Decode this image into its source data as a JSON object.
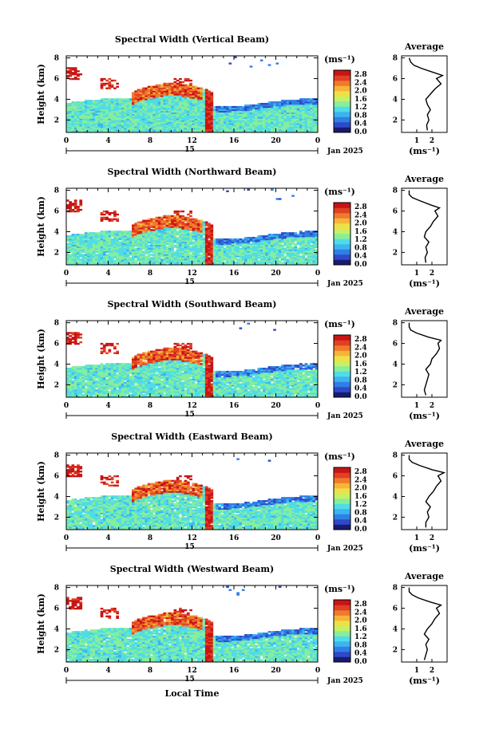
{
  "chart_data": [
    {
      "type": "heatmap",
      "title": "Spectral Width (Vertical Beam)",
      "ylabel": "Height (km)",
      "xlabel": "",
      "xticks": [
        "0",
        "4",
        "8",
        "12",
        "16",
        "20",
        "0"
      ],
      "ylim": [
        0.8,
        8.2
      ],
      "yticks": [
        "2",
        "4",
        "6",
        "8"
      ],
      "xlim_hours": [
        0,
        24
      ],
      "date_day": "15",
      "date_month_year": "Jan 2025",
      "colorbar": {
        "unit": "(ms⁻¹)",
        "ticks": [
          "2.8",
          "2.4",
          "2.0",
          "1.6",
          "1.2",
          "0.8",
          "0.4",
          "0.0"
        ],
        "range": [
          0.0,
          2.8
        ]
      },
      "profile": {
        "title": "Average",
        "xlabel": "(ms⁻¹)",
        "xticks": [
          "1",
          "2"
        ],
        "yticks": [
          "2",
          "4",
          "6",
          "8"
        ],
        "heights": [
          1.0,
          1.5,
          2.0,
          2.5,
          3.0,
          3.5,
          4.0,
          4.5,
          5.0,
          5.5,
          6.0,
          6.3,
          6.6,
          7.0,
          7.3,
          7.6,
          8.0
        ],
        "values": [
          1.7,
          1.65,
          1.8,
          1.7,
          1.9,
          1.7,
          1.6,
          1.9,
          2.2,
          2.6,
          2.3,
          2.7,
          2.1,
          1.3,
          0.8,
          0.6,
          0.5
        ]
      }
    },
    {
      "type": "heatmap",
      "title": "Spectral Width (Northward Beam)",
      "ylabel": "Height (km)",
      "xlabel": "",
      "xticks": [
        "0",
        "4",
        "8",
        "12",
        "16",
        "20",
        "0"
      ],
      "ylim": [
        0.8,
        8.2
      ],
      "yticks": [
        "2",
        "4",
        "6",
        "8"
      ],
      "xlim_hours": [
        0,
        24
      ],
      "date_day": "15",
      "date_month_year": "Jan 2025",
      "colorbar": {
        "unit": "(ms⁻¹)",
        "ticks": [
          "2.8",
          "2.4",
          "2.0",
          "1.6",
          "1.2",
          "0.8",
          "0.4",
          "0.0"
        ],
        "range": [
          0.0,
          2.8
        ]
      },
      "profile": {
        "title": "Average",
        "xlabel": "(ms⁻¹)",
        "xticks": [
          "1",
          "2"
        ],
        "yticks": [
          "2",
          "4",
          "6",
          "8"
        ],
        "heights": [
          1.0,
          1.5,
          2.0,
          2.5,
          3.0,
          3.5,
          4.0,
          4.5,
          5.0,
          5.5,
          6.0,
          6.3,
          6.6,
          7.0,
          7.3,
          7.6,
          8.0
        ],
        "values": [
          1.6,
          1.55,
          1.7,
          1.6,
          1.8,
          1.5,
          1.6,
          1.9,
          2.1,
          2.4,
          2.2,
          2.5,
          1.9,
          1.2,
          0.7,
          0.5,
          0.5
        ]
      }
    },
    {
      "type": "heatmap",
      "title": "Spectral Width (Southward Beam)",
      "ylabel": "Height (km)",
      "xlabel": "",
      "xticks": [
        "0",
        "4",
        "8",
        "12",
        "16",
        "20",
        "0"
      ],
      "ylim": [
        0.8,
        8.2
      ],
      "yticks": [
        "2",
        "4",
        "6",
        "8"
      ],
      "xlim_hours": [
        0,
        24
      ],
      "date_day": "15",
      "date_month_year": "Jan 2025",
      "colorbar": {
        "unit": "(ms⁻¹)",
        "ticks": [
          "2.8",
          "2.4",
          "2.0",
          "1.6",
          "1.2",
          "0.8",
          "0.4",
          "0.0"
        ],
        "range": [
          0.0,
          2.8
        ]
      },
      "profile": {
        "title": "Average",
        "xlabel": "(ms⁻¹)",
        "xticks": [
          "1",
          "2"
        ],
        "yticks": [
          "2",
          "4",
          "6",
          "8"
        ],
        "heights": [
          1.0,
          1.5,
          2.0,
          2.5,
          3.0,
          3.5,
          4.0,
          4.5,
          5.0,
          5.5,
          6.0,
          6.3,
          6.6,
          7.0,
          7.3,
          7.6,
          8.0
        ],
        "values": [
          1.6,
          1.5,
          1.6,
          1.7,
          1.8,
          1.6,
          1.9,
          2.0,
          2.3,
          2.5,
          2.4,
          2.6,
          1.8,
          1.0,
          0.6,
          0.5,
          0.5
        ]
      }
    },
    {
      "type": "heatmap",
      "title": "Spectral Width (Eastward Beam)",
      "ylabel": "Height (km)",
      "xlabel": "",
      "xticks": [
        "0",
        "4",
        "8",
        "12",
        "16",
        "20",
        "0"
      ],
      "ylim": [
        0.8,
        8.2
      ],
      "yticks": [
        "2",
        "4",
        "6",
        "8"
      ],
      "xlim_hours": [
        0,
        24
      ],
      "date_day": "15",
      "date_month_year": "Jan 2025",
      "colorbar": {
        "unit": "(ms⁻¹)",
        "ticks": [
          "2.8",
          "2.4",
          "2.0",
          "1.6",
          "1.2",
          "0.8",
          "0.4",
          "0.0"
        ],
        "range": [
          0.0,
          2.8
        ]
      },
      "profile": {
        "title": "Average",
        "xlabel": "(ms⁻¹)",
        "xticks": [
          "1",
          "2"
        ],
        "yticks": [
          "2",
          "4",
          "6",
          "8"
        ],
        "heights": [
          1.0,
          1.5,
          2.0,
          2.5,
          3.0,
          3.5,
          4.0,
          4.5,
          5.0,
          5.5,
          6.0,
          6.3,
          6.6,
          7.0,
          7.3,
          7.6,
          8.0
        ],
        "values": [
          1.6,
          1.6,
          1.8,
          1.7,
          1.9,
          1.6,
          1.8,
          2.1,
          2.3,
          2.6,
          2.4,
          2.8,
          2.0,
          1.2,
          0.7,
          0.5,
          0.5
        ]
      }
    },
    {
      "type": "heatmap",
      "title": "Spectral Width (Westward Beam)",
      "ylabel": "Height (km)",
      "xlabel": "Local Time",
      "xticks": [
        "0",
        "4",
        "8",
        "12",
        "16",
        "20",
        "0"
      ],
      "ylim": [
        0.8,
        8.2
      ],
      "yticks": [
        "2",
        "4",
        "6",
        "8"
      ],
      "xlim_hours": [
        0,
        24
      ],
      "date_day": "15",
      "date_month_year": "Jan 2025",
      "colorbar": {
        "unit": "(ms⁻¹)",
        "ticks": [
          "2.8",
          "2.4",
          "2.0",
          "1.6",
          "1.2",
          "0.8",
          "0.4",
          "0.0"
        ],
        "range": [
          0.0,
          2.8
        ]
      },
      "profile": {
        "title": "Average",
        "xlabel": "(ms⁻¹)",
        "xticks": [
          "1",
          "2"
        ],
        "yticks": [
          "2",
          "4",
          "6",
          "8"
        ],
        "heights": [
          1.0,
          1.5,
          2.0,
          2.5,
          3.0,
          3.5,
          4.0,
          4.5,
          5.0,
          5.5,
          6.0,
          6.3,
          6.6,
          7.0,
          7.3,
          7.6,
          8.0
        ],
        "values": [
          1.5,
          1.6,
          1.7,
          1.6,
          1.8,
          1.5,
          1.7,
          2.0,
          2.2,
          2.5,
          2.3,
          2.6,
          1.9,
          1.1,
          0.7,
          0.5,
          0.5
        ]
      }
    }
  ],
  "colormap": [
    "#1a1a70",
    "#2f49c8",
    "#2f7fe6",
    "#3cb4f0",
    "#50dce6",
    "#86ee9c",
    "#c8f064",
    "#f0e048",
    "#f6b438",
    "#f07a2c",
    "#e04024",
    "#c81414"
  ]
}
